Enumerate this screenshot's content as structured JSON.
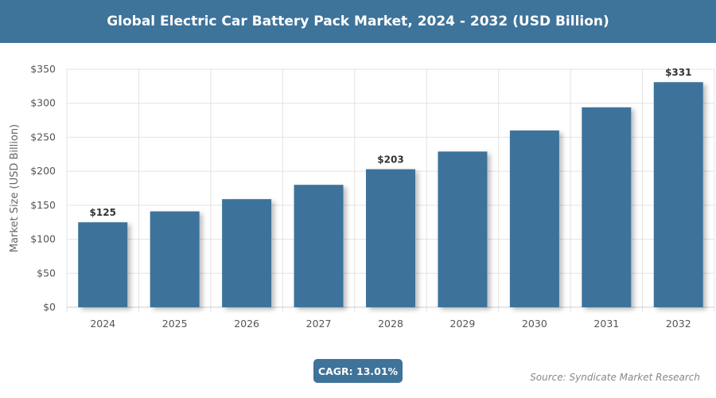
{
  "header": {
    "title": "Global Electric Car Battery Pack Market, 2024 - 2032 (USD Billion)"
  },
  "chart_data": {
    "type": "bar",
    "title": "Global Electric Car Battery Pack Market, 2024 - 2032 (USD Billion)",
    "categories": [
      "2024",
      "2025",
      "2026",
      "2027",
      "2028",
      "2029",
      "2030",
      "2031",
      "2032"
    ],
    "values": [
      125,
      141,
      159,
      180,
      203,
      229,
      260,
      294,
      331
    ],
    "data_labels": {
      "2024": "$125",
      "2028": "$203",
      "2032": "$331"
    },
    "xlabel": "",
    "ylabel": "Market Size (USD Billion)",
    "ylim": [
      0,
      350
    ],
    "yticks": [
      0,
      50,
      100,
      150,
      200,
      250,
      300,
      350
    ],
    "ytick_labels": [
      "$0",
      "$50",
      "$100",
      "$150",
      "$200",
      "$250",
      "$300",
      "$350"
    ],
    "grid": true,
    "bar_color": "#3e739a"
  },
  "footer": {
    "cagr": "CAGR: 13.01%",
    "source": "Source: Syndicate Market Research"
  }
}
